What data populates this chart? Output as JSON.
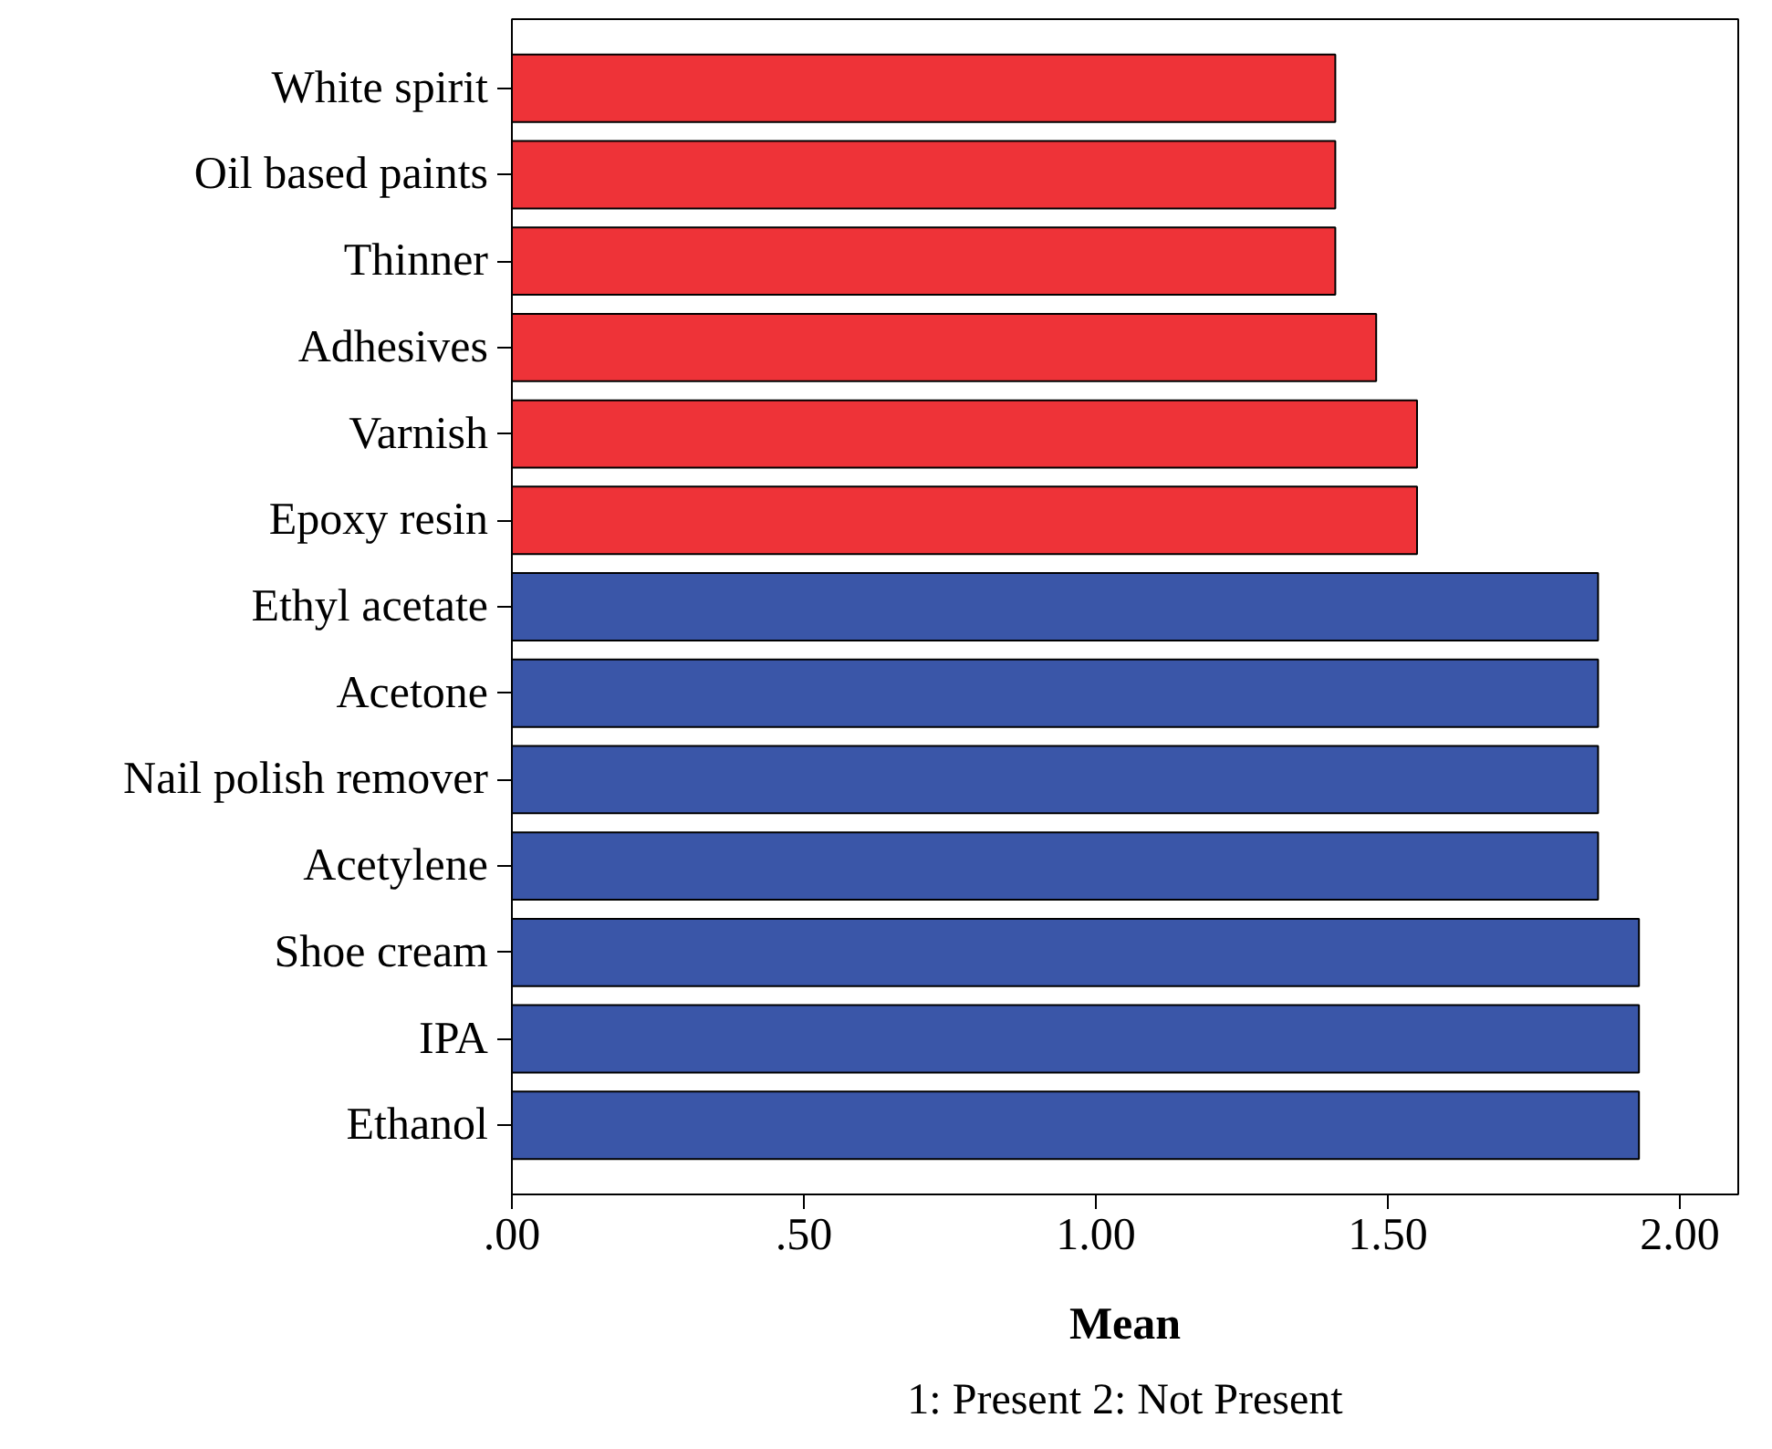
{
  "chart_data": {
    "type": "bar",
    "orientation": "horizontal",
    "xlabel": "Mean",
    "annotations": [
      "1: Present 2: Not Present"
    ],
    "categories": [
      "White spirit",
      "Oil based paints",
      "Thinner",
      "Adhesives",
      "Varnish",
      "Epoxy resin",
      "Ethyl acetate",
      "Acetone",
      "Nail polish remover",
      "Acetylene",
      "Shoe cream",
      "IPA",
      "Ethanol"
    ],
    "values": [
      1.41,
      1.41,
      1.41,
      1.48,
      1.55,
      1.55,
      1.86,
      1.86,
      1.86,
      1.86,
      1.93,
      1.93,
      1.93
    ],
    "colors": [
      "#ee3338",
      "#ee3338",
      "#ee3338",
      "#ee3338",
      "#ee3338",
      "#ee3338",
      "#3a56a8",
      "#3a56a8",
      "#3a56a8",
      "#3a56a8",
      "#3a56a8",
      "#3a56a8",
      "#3a56a8"
    ],
    "xlim": [
      0,
      2.1
    ],
    "xticks": [
      {
        "value": 0,
        "label": ".00"
      },
      {
        "value": 0.5,
        "label": ".50"
      },
      {
        "value": 1,
        "label": "1.00"
      },
      {
        "value": 1.5,
        "label": "1.50"
      },
      {
        "value": 2,
        "label": "2.00"
      }
    ],
    "grid": false
  }
}
